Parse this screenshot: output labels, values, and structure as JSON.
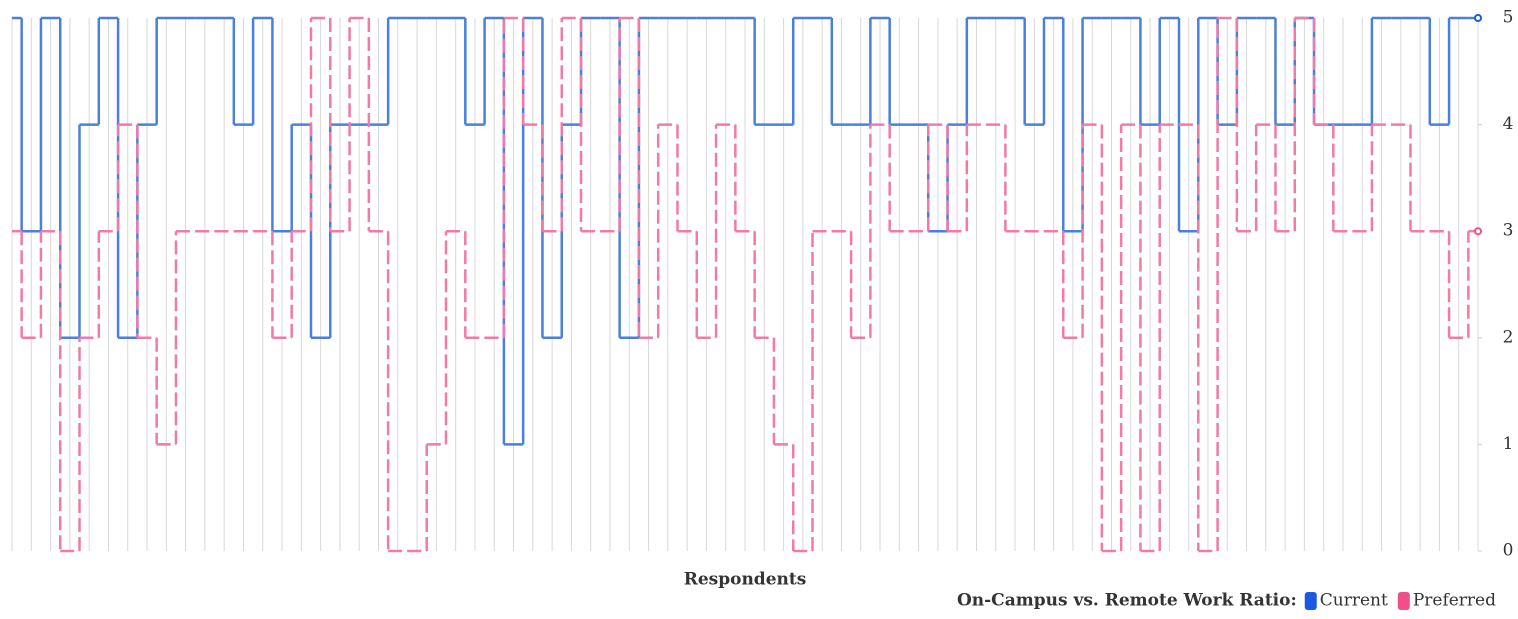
{
  "chart_data": {
    "type": "step",
    "x_label": "Respondents",
    "legend_title": "On-Campus vs. Remote Work Ratio:",
    "legend_position": "bottom-right",
    "categories": [
      null,
      null,
      null,
      null,
      null,
      null,
      null,
      null,
      null,
      null,
      null,
      null,
      null,
      null,
      null,
      null,
      null,
      null,
      null,
      null,
      null,
      null,
      null,
      null,
      null,
      null,
      null,
      null,
      null,
      null,
      null,
      null,
      null,
      null,
      null,
      null,
      null,
      null,
      null,
      null,
      null,
      null,
      null,
      null,
      null,
      null,
      null,
      null,
      null,
      null,
      null,
      null,
      null,
      null,
      null,
      null,
      null,
      null,
      null,
      null,
      null,
      null,
      null,
      null,
      null,
      null,
      null,
      null,
      null,
      null,
      null,
      null,
      null,
      null,
      null,
      null,
      null
    ],
    "series": [
      {
        "name": "Current",
        "color": "#1a5ae0",
        "line_color": "#4a7fdc",
        "dashed": false,
        "values": [
          5,
          3,
          5,
          2,
          4,
          5,
          2,
          4,
          5,
          5,
          5,
          5,
          4,
          5,
          3,
          4,
          2,
          4,
          4,
          4,
          5,
          5,
          5,
          5,
          4,
          5,
          1,
          5,
          2,
          4,
          5,
          5,
          2,
          5,
          5,
          5,
          5,
          5,
          5,
          4,
          4,
          5,
          5,
          4,
          4,
          5,
          4,
          4,
          3,
          4,
          5,
          5,
          5,
          4,
          5,
          3,
          5,
          5,
          5,
          4,
          5,
          3,
          5,
          4,
          5,
          5,
          4,
          5,
          4,
          4,
          4,
          5,
          5,
          5,
          4,
          5,
          5
        ]
      },
      {
        "name": "Preferred",
        "color": "#f0508a",
        "line_color": "#f07aa8",
        "dashed": true,
        "values": [
          3,
          2,
          3,
          0,
          2,
          3,
          4,
          2,
          1,
          3,
          3,
          3,
          3,
          3,
          2,
          3,
          5,
          3,
          5,
          3,
          0,
          0,
          1,
          3,
          2,
          2,
          5,
          4,
          3,
          5,
          3,
          3,
          5,
          2,
          4,
          3,
          2,
          4,
          3,
          2,
          1,
          0,
          3,
          3,
          2,
          4,
          3,
          3,
          4,
          3,
          4,
          4,
          3,
          3,
          3,
          2,
          4,
          0,
          4,
          0,
          4,
          4,
          0,
          5,
          3,
          4,
          3,
          5,
          4,
          3,
          3,
          4,
          4,
          3,
          3,
          2,
          3
        ]
      }
    ],
    "ylim": [
      0,
      5
    ],
    "yticks": [
      0,
      1,
      2,
      3,
      4,
      5
    ],
    "y_axis_side": "right",
    "vertical_grid": true
  }
}
